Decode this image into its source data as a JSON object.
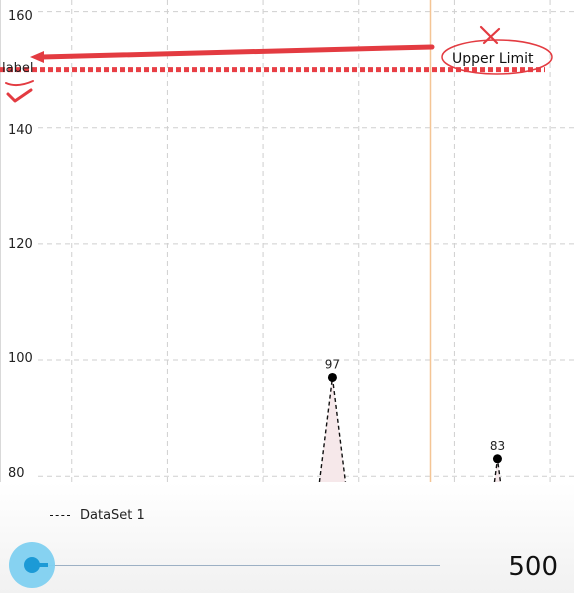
{
  "chart_data": {
    "type": "line",
    "series": [
      {
        "name": "DataSet 1",
        "points": [
          {
            "x": 6.95,
            "y": 97,
            "label": "97"
          },
          {
            "x": 10.4,
            "y": 83,
            "label": "83"
          }
        ],
        "color": "#111111",
        "line_style": "dashed",
        "fill": "#f6e8ea"
      }
    ],
    "x_range": [
      0,
      12
    ],
    "ylim": [
      79,
      162
    ],
    "y_ticks": [
      "80",
      "100",
      "120",
      "140",
      "160"
    ],
    "limit_line": {
      "value": 150,
      "label": "label",
      "color": "#e83f45",
      "style": "dotted"
    },
    "vertical_marker": {
      "x": 9,
      "color": "#f4c595"
    },
    "grid": true
  },
  "annotations": {
    "upper_limit_text": "Upper Limit",
    "arrow_color": "#e33b41"
  },
  "legend": {
    "label": "DataSet 1"
  },
  "slider": {
    "value": "500",
    "fraction": 0.02
  }
}
